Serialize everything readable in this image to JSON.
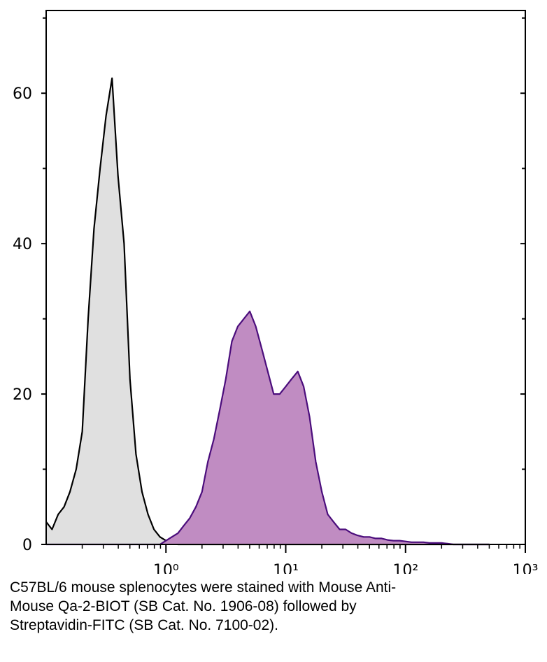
{
  "chart_data": {
    "type": "histogram-overlay",
    "xscale": "log",
    "xlim": [
      0.1,
      1000
    ],
    "xticks": [
      {
        "value": 1,
        "label": "10⁰"
      },
      {
        "value": 10,
        "label": "10¹"
      },
      {
        "value": 100,
        "label": "10²"
      },
      {
        "value": 1000,
        "label": "10³"
      }
    ],
    "ylim": [
      0,
      71
    ],
    "yticks": [
      0,
      20,
      40,
      60
    ],
    "yminorticks": [
      10,
      30,
      50,
      70
    ],
    "x": [
      0.1,
      0.112,
      0.126,
      0.141,
      0.158,
      0.178,
      0.2,
      0.224,
      0.251,
      0.282,
      0.316,
      0.355,
      0.398,
      0.447,
      0.501,
      0.562,
      0.631,
      0.708,
      0.794,
      0.891,
      1,
      1.12,
      1.26,
      1.41,
      1.58,
      1.78,
      2,
      2.24,
      2.51,
      2.82,
      3.16,
      3.55,
      3.98,
      4.47,
      5.01,
      5.62,
      6.31,
      7.08,
      7.94,
      8.91,
      10,
      11.2,
      12.6,
      14.1,
      15.8,
      17.8,
      20,
      22.4,
      25.1,
      28.2,
      31.6,
      35.5,
      39.8,
      44.7,
      50.1,
      56.2,
      63.1,
      70.8,
      79.4,
      89.1,
      100,
      112,
      126,
      141,
      158,
      178,
      200,
      224,
      251,
      282,
      316,
      355,
      398,
      447,
      501
    ],
    "series": [
      {
        "color": "#000000",
        "fill": "#e0e0e0",
        "values": [
          3,
          2,
          4,
          5,
          7,
          10,
          15,
          30,
          42,
          50,
          57,
          62,
          49,
          40,
          22,
          12,
          7,
          4,
          2,
          1,
          0.5,
          0.2,
          0,
          0,
          0,
          0,
          0,
          0,
          0,
          0,
          0,
          0,
          0,
          0,
          0,
          0,
          0,
          0,
          0,
          0,
          0,
          0,
          0,
          0,
          0,
          0,
          0,
          0,
          0,
          0,
          0,
          0,
          0,
          0,
          0,
          0,
          0,
          0,
          0,
          0,
          0,
          0,
          0,
          0,
          0,
          0,
          0,
          0,
          0,
          0,
          0,
          0,
          0,
          0,
          0
        ]
      },
      {
        "color": "#4b0d7c",
        "fill": "#c08cc2",
        "values": [
          0,
          0,
          0,
          0,
          0,
          0,
          0,
          0,
          0,
          0,
          0,
          0,
          0,
          0,
          0,
          0,
          0,
          0,
          0,
          0,
          0.5,
          1,
          1.5,
          2.5,
          3.5,
          5,
          7,
          11,
          14,
          18,
          22,
          27,
          29,
          30,
          31,
          29,
          26,
          23,
          20,
          20,
          21,
          22,
          23,
          21,
          17,
          11,
          7,
          4,
          3,
          2,
          2,
          1.5,
          1.2,
          1,
          1,
          0.8,
          0.8,
          0.6,
          0.5,
          0.5,
          0.4,
          0.3,
          0.3,
          0.3,
          0.2,
          0.2,
          0.2,
          0.1,
          0,
          0,
          0,
          0,
          0,
          0,
          0
        ]
      }
    ]
  },
  "caption": [
    "C57BL/6 mouse splenocytes were stained with Mouse Anti-",
    "Mouse Qa-2-BIOT (SB Cat. No. 1906-08) followed by",
    "Streptavidin-FITC (SB Cat. No. 7100-02)."
  ]
}
